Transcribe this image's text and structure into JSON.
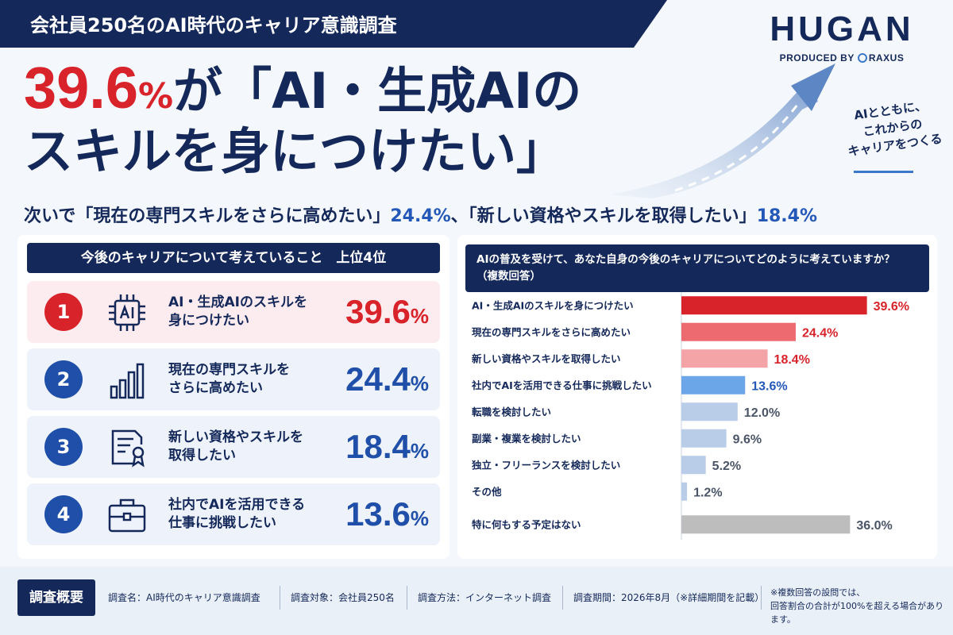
{
  "header": {
    "title": "会社員250名のAI時代のキャリア意識調査"
  },
  "logo": {
    "word": "HUGAN",
    "produced_by": "PRODUCED BY",
    "partner": "RAXUS"
  },
  "tagline": [
    "AIとともに、",
    "これからの",
    "キャリアをつくる"
  ],
  "headline": {
    "percent_number": "39.6",
    "percent_unit": "%",
    "line1_rest": "が「AI・生成AIの",
    "line2": "スキルを身につけたい」"
  },
  "subhead": {
    "prefix": "次いで「現在の専門スキルをさらに高めたい」",
    "value1": "24.4%",
    "mid": "、「新しい資格やスキルを取得したい」",
    "value2": "18.4%"
  },
  "ranking": {
    "title": "今後のキャリアについて考えていること　上位4位",
    "items": [
      {
        "rank": "1",
        "icon": "ai-chip-icon",
        "line1": "AI・生成AIのスキルを",
        "line2": "身につけたい",
        "value": "39.6",
        "unit": "%"
      },
      {
        "rank": "2",
        "icon": "bar-chart-icon",
        "line1": "現在の専門スキルを",
        "line2": "さらに高めたい",
        "value": "24.4",
        "unit": "%"
      },
      {
        "rank": "3",
        "icon": "certificate-icon",
        "line1": "新しい資格やスキルを",
        "line2": "取得したい",
        "value": "18.4",
        "unit": "%"
      },
      {
        "rank": "4",
        "icon": "briefcase-icon",
        "line1": "社内でAIを活用できる",
        "line2": "仕事に挑戦したい",
        "value": "13.6",
        "unit": "%"
      }
    ]
  },
  "chart_panel": {
    "title_line1": "AIの普及を受けて、あなた自身の今後のキャリアについてどのように考えていますか？",
    "title_line2": "（複数回答）"
  },
  "chart_data": {
    "type": "bar",
    "orientation": "horizontal",
    "categories": [
      "AI・生成AIのスキルを身につけたい",
      "現在の専門スキルをさらに高めたい",
      "新しい資格やスキルを取得したい",
      "社内でAIを活用できる仕事に挑戦したい",
      "転職を検討したい",
      "副業・複業を検討したい",
      "独立・フリーランスを検討したい",
      "その他",
      "特に何もする予定はない"
    ],
    "values": [
      39.6,
      24.4,
      18.4,
      13.6,
      12.0,
      9.6,
      5.2,
      1.2,
      36.0
    ],
    "value_labels": [
      "39.6%",
      "24.4%",
      "18.4%",
      "13.6%",
      "12.0%",
      "9.6%",
      "5.2%",
      "1.2%",
      "36.0%"
    ],
    "bar_colors": [
      "#d8232a",
      "#ec6a70",
      "#f4a4a7",
      "#6aa6e8",
      "#b9cde9",
      "#b9cde9",
      "#b9cde9",
      "#b9cde9",
      "#bdbdbd"
    ],
    "label_colors": [
      "#d8232a",
      "#d8232a",
      "#d8232a",
      "#2458b8",
      "#4a5568",
      "#4a5568",
      "#4a5568",
      "#4a5568",
      "#4a5568"
    ],
    "xlim": [
      0,
      40
    ],
    "grid": false,
    "legend": "none"
  },
  "footer": {
    "tag": "調査概要",
    "survey_name": "調査名：AI時代のキャリア意識調査",
    "target": "調査対象：会社員250名",
    "method": "調査方法：インターネット調査",
    "period": "調査期間：2026年8月（※詳細期間を記載）",
    "note_line1": "※複数回答の設問では、",
    "note_line2": "回答割合の合計が100%を超える場合があります。"
  },
  "colors": {
    "navy": "#14285a",
    "accent_red": "#d8232a",
    "accent_blue": "#1f4fa8"
  }
}
